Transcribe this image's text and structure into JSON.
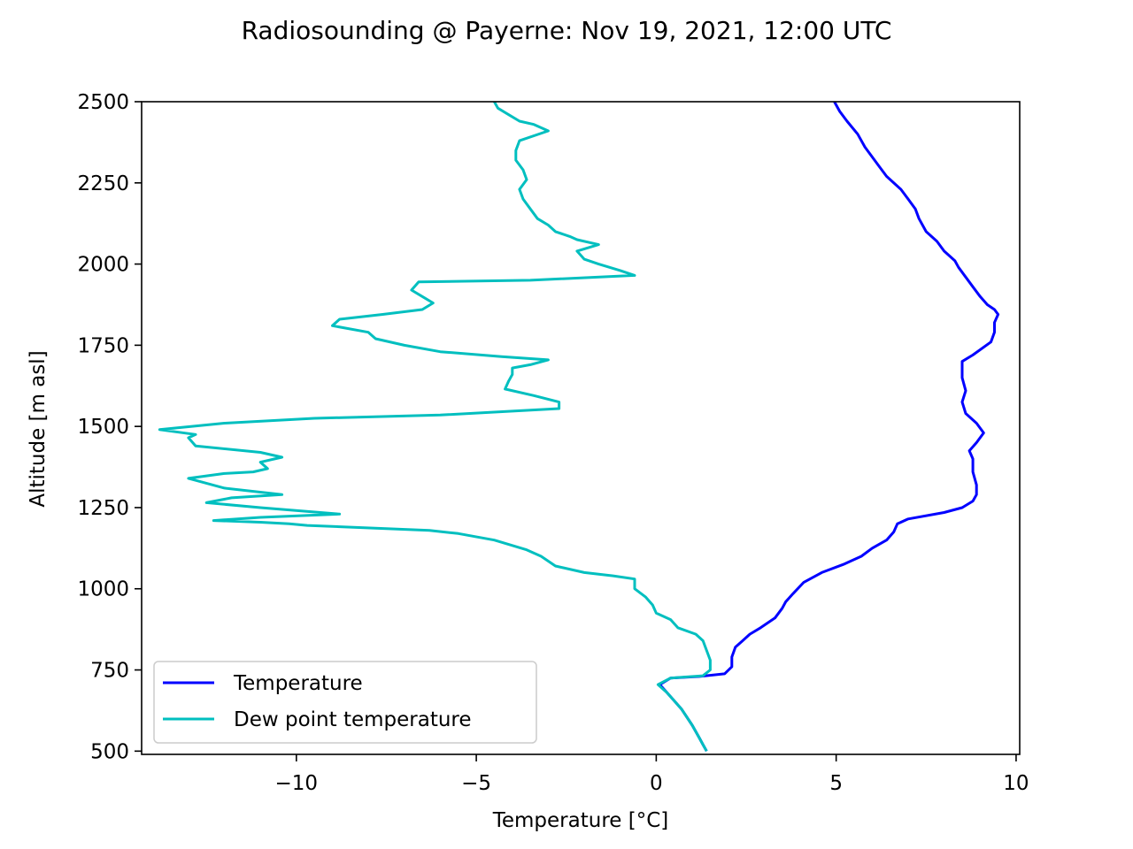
{
  "chart_data": {
    "type": "line",
    "title": "Radiosounding @ Payerne: Nov 19, 2021, 12:00 UTC",
    "xlabel": "Temperature [°C]",
    "ylabel": "Altitude [m asl]",
    "xlim": [
      -14.3,
      10.1
    ],
    "ylim": [
      490,
      2500
    ],
    "x_ticks": [
      -10,
      -5,
      0,
      5,
      10
    ],
    "x_tick_labels": [
      "−10",
      "−5",
      "0",
      "5",
      "10"
    ],
    "y_ticks": [
      500,
      750,
      1000,
      1250,
      1500,
      1750,
      2000,
      2250,
      2500
    ],
    "y_tick_labels": [
      "500",
      "750",
      "1000",
      "1250",
      "1500",
      "1750",
      "2000",
      "2250",
      "2500"
    ],
    "grid": false,
    "legend_position": "lower-left",
    "series": [
      {
        "name": "Temperature",
        "color": "#0000ff",
        "points": [
          [
            1.4,
            500
          ],
          [
            1.3,
            520
          ],
          [
            1.2,
            540
          ],
          [
            1.0,
            580
          ],
          [
            0.7,
            630
          ],
          [
            0.3,
            680
          ],
          [
            0.1,
            705
          ],
          [
            0.4,
            725
          ],
          [
            1.2,
            730
          ],
          [
            1.9,
            738
          ],
          [
            2.1,
            760
          ],
          [
            2.1,
            790
          ],
          [
            2.2,
            820
          ],
          [
            2.4,
            840
          ],
          [
            2.6,
            860
          ],
          [
            2.9,
            880
          ],
          [
            3.3,
            910
          ],
          [
            3.5,
            940
          ],
          [
            3.6,
            960
          ],
          [
            3.8,
            985
          ],
          [
            4.1,
            1020
          ],
          [
            4.6,
            1050
          ],
          [
            5.2,
            1075
          ],
          [
            5.7,
            1100
          ],
          [
            6.0,
            1125
          ],
          [
            6.4,
            1150
          ],
          [
            6.6,
            1175
          ],
          [
            6.7,
            1200
          ],
          [
            7.0,
            1215
          ],
          [
            8.0,
            1235
          ],
          [
            8.5,
            1250
          ],
          [
            8.8,
            1270
          ],
          [
            8.9,
            1290
          ],
          [
            8.9,
            1320
          ],
          [
            8.8,
            1360
          ],
          [
            8.8,
            1400
          ],
          [
            8.7,
            1425
          ],
          [
            8.9,
            1450
          ],
          [
            9.1,
            1480
          ],
          [
            8.9,
            1510
          ],
          [
            8.6,
            1540
          ],
          [
            8.5,
            1575
          ],
          [
            8.6,
            1610
          ],
          [
            8.5,
            1650
          ],
          [
            8.5,
            1700
          ],
          [
            8.8,
            1720
          ],
          [
            9.3,
            1760
          ],
          [
            9.4,
            1790
          ],
          [
            9.4,
            1820
          ],
          [
            9.5,
            1845
          ],
          [
            9.4,
            1860
          ],
          [
            9.2,
            1875
          ],
          [
            9.0,
            1900
          ],
          [
            8.8,
            1930
          ],
          [
            8.6,
            1960
          ],
          [
            8.4,
            1990
          ],
          [
            8.3,
            2010
          ],
          [
            8.0,
            2040
          ],
          [
            7.8,
            2070
          ],
          [
            7.5,
            2100
          ],
          [
            7.3,
            2140
          ],
          [
            7.2,
            2170
          ],
          [
            7.0,
            2200
          ],
          [
            6.8,
            2230
          ],
          [
            6.4,
            2270
          ],
          [
            6.2,
            2300
          ],
          [
            6.0,
            2330
          ],
          [
            5.8,
            2360
          ],
          [
            5.6,
            2400
          ],
          [
            5.3,
            2440
          ],
          [
            5.1,
            2470
          ],
          [
            4.95,
            2500
          ]
        ]
      },
      {
        "name": "Dew point temperature",
        "color": "#00bfbf",
        "points": [
          [
            1.4,
            500
          ],
          [
            1.3,
            520
          ],
          [
            1.2,
            540
          ],
          [
            1.0,
            580
          ],
          [
            0.7,
            630
          ],
          [
            0.3,
            680
          ],
          [
            0.05,
            705
          ],
          [
            0.4,
            725
          ],
          [
            1.3,
            732
          ],
          [
            1.5,
            750
          ],
          [
            1.5,
            780
          ],
          [
            1.4,
            810
          ],
          [
            1.3,
            840
          ],
          [
            1.1,
            860
          ],
          [
            0.6,
            880
          ],
          [
            0.4,
            905
          ],
          [
            0.0,
            925
          ],
          [
            -0.1,
            950
          ],
          [
            -0.3,
            975
          ],
          [
            -0.6,
            1000
          ],
          [
            -0.6,
            1030
          ],
          [
            -1.2,
            1040
          ],
          [
            -2.0,
            1050
          ],
          [
            -2.8,
            1070
          ],
          [
            -3.2,
            1100
          ],
          [
            -3.6,
            1120
          ],
          [
            -4.5,
            1150
          ],
          [
            -5.5,
            1170
          ],
          [
            -6.3,
            1180
          ],
          [
            -7.5,
            1185
          ],
          [
            -9.7,
            1195
          ],
          [
            -10.2,
            1200
          ],
          [
            -11.0,
            1205
          ],
          [
            -12.3,
            1210
          ],
          [
            -11.0,
            1220
          ],
          [
            -8.8,
            1230
          ],
          [
            -11.0,
            1250
          ],
          [
            -12.5,
            1265
          ],
          [
            -11.8,
            1280
          ],
          [
            -10.4,
            1290
          ],
          [
            -12.0,
            1310
          ],
          [
            -13.0,
            1340
          ],
          [
            -12.0,
            1355
          ],
          [
            -11.2,
            1360
          ],
          [
            -10.8,
            1370
          ],
          [
            -11.0,
            1390
          ],
          [
            -10.4,
            1405
          ],
          [
            -11.0,
            1420
          ],
          [
            -12.8,
            1440
          ],
          [
            -13.0,
            1465
          ],
          [
            -12.8,
            1475
          ],
          [
            -13.8,
            1490
          ],
          [
            -12.0,
            1510
          ],
          [
            -9.5,
            1525
          ],
          [
            -6.0,
            1535
          ],
          [
            -2.7,
            1555
          ],
          [
            -2.7,
            1575
          ],
          [
            -3.4,
            1595
          ],
          [
            -4.2,
            1615
          ],
          [
            -4.1,
            1640
          ],
          [
            -4.0,
            1660
          ],
          [
            -4.0,
            1680
          ],
          [
            -3.5,
            1690
          ],
          [
            -3.0,
            1705
          ],
          [
            -4.3,
            1715
          ],
          [
            -6.0,
            1730
          ],
          [
            -7.0,
            1750
          ],
          [
            -7.8,
            1770
          ],
          [
            -8.0,
            1790
          ],
          [
            -9.0,
            1810
          ],
          [
            -8.8,
            1830
          ],
          [
            -7.6,
            1845
          ],
          [
            -6.5,
            1860
          ],
          [
            -6.2,
            1880
          ],
          [
            -6.5,
            1900
          ],
          [
            -6.8,
            1920
          ],
          [
            -6.6,
            1945
          ],
          [
            -3.5,
            1950
          ],
          [
            -0.6,
            1965
          ],
          [
            -1.0,
            1980
          ],
          [
            -1.6,
            2000
          ],
          [
            -2.0,
            2015
          ],
          [
            -2.2,
            2040
          ],
          [
            -1.6,
            2060
          ],
          [
            -2.2,
            2075
          ],
          [
            -2.4,
            2085
          ],
          [
            -2.8,
            2100
          ],
          [
            -3.0,
            2120
          ],
          [
            -3.3,
            2140
          ],
          [
            -3.5,
            2170
          ],
          [
            -3.7,
            2200
          ],
          [
            -3.8,
            2230
          ],
          [
            -3.6,
            2260
          ],
          [
            -3.7,
            2290
          ],
          [
            -3.9,
            2320
          ],
          [
            -3.9,
            2350
          ],
          [
            -3.8,
            2380
          ],
          [
            -3.0,
            2410
          ],
          [
            -3.4,
            2430
          ],
          [
            -3.8,
            2440
          ],
          [
            -4.1,
            2460
          ],
          [
            -4.4,
            2480
          ],
          [
            -4.5,
            2500
          ]
        ]
      }
    ]
  }
}
